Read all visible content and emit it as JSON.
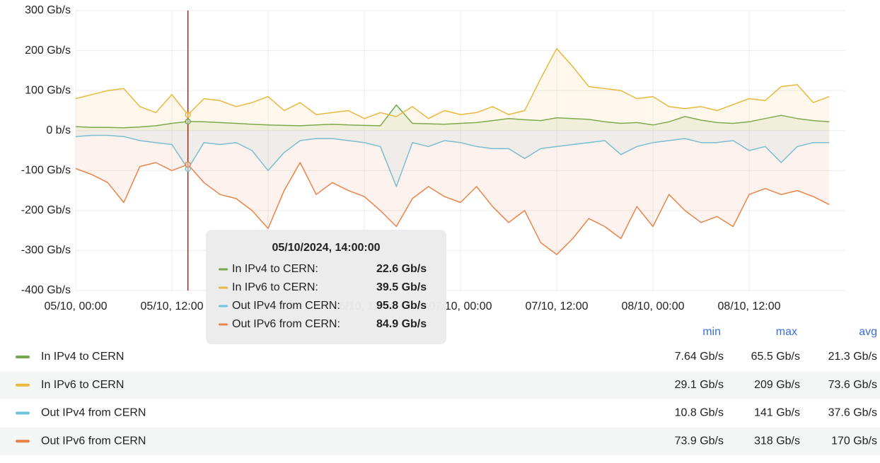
{
  "chart_data": {
    "type": "line",
    "x": [
      "05/10, 00:00",
      "05/10, 02:00",
      "05/10, 04:00",
      "05/10, 06:00",
      "05/10, 08:00",
      "05/10, 10:00",
      "05/10, 12:00",
      "05/10, 14:00",
      "05/10, 16:00",
      "05/10, 18:00",
      "05/10, 20:00",
      "05/10, 22:00",
      "06/10, 00:00",
      "06/10, 02:00",
      "06/10, 04:00",
      "06/10, 06:00",
      "06/10, 08:00",
      "06/10, 10:00",
      "06/10, 12:00",
      "06/10, 14:00",
      "06/10, 16:00",
      "06/10, 18:00",
      "06/10, 20:00",
      "06/10, 22:00",
      "07/10, 00:00",
      "07/10, 02:00",
      "07/10, 04:00",
      "07/10, 06:00",
      "07/10, 08:00",
      "07/10, 10:00",
      "07/10, 12:00",
      "07/10, 14:00",
      "07/10, 16:00",
      "07/10, 18:00",
      "07/10, 20:00",
      "07/10, 22:00",
      "08/10, 00:00",
      "08/10, 02:00",
      "08/10, 04:00",
      "08/10, 06:00",
      "08/10, 08:00",
      "08/10, 10:00",
      "08/10, 12:00",
      "08/10, 14:00",
      "08/10, 16:00",
      "08/10, 18:00",
      "08/10, 20:00",
      "08/10, 22:00"
    ],
    "xlim": [
      "05/10, 00:00",
      "09/10, 00:00"
    ],
    "xticks": [
      "05/10, 00:00",
      "05/10, 12:00",
      "06/10, 00:00",
      "06/10, 12:00",
      "07/10, 00:00",
      "07/10, 12:00",
      "08/10, 00:00",
      "08/10, 12:00"
    ],
    "ylim": [
      -400,
      300
    ],
    "yticks": [
      {
        "value": 300,
        "label": "300 Gb/s"
      },
      {
        "value": 200,
        "label": "200 Gb/s"
      },
      {
        "value": 100,
        "label": "100 Gb/s"
      },
      {
        "value": 0,
        "label": "0 b/s"
      },
      {
        "value": -100,
        "label": "-100 Gb/s"
      },
      {
        "value": -200,
        "label": "-200 Gb/s"
      },
      {
        "value": -300,
        "label": "-300 Gb/s"
      },
      {
        "value": -400,
        "label": "-400 Gb/s"
      }
    ],
    "grid": true,
    "series": [
      {
        "name": "In IPv4 to CERN",
        "color": "#73a850",
        "values": [
          10,
          8,
          8,
          7,
          9,
          12,
          18,
          22.6,
          22,
          20,
          18,
          16,
          14,
          13,
          12,
          14,
          16,
          14,
          13,
          12,
          64,
          18,
          17,
          16,
          18,
          20,
          25,
          30,
          27,
          25,
          32,
          30,
          28,
          22,
          18,
          20,
          14,
          22,
          35,
          26,
          20,
          18,
          22,
          30,
          38,
          30,
          25,
          22
        ]
      },
      {
        "name": "In IPv6 to CERN",
        "color": "#e8b83f",
        "values": [
          80,
          90,
          100,
          105,
          60,
          45,
          90,
          39.5,
          80,
          75,
          60,
          70,
          85,
          50,
          70,
          40,
          45,
          50,
          30,
          45,
          35,
          60,
          30,
          50,
          40,
          45,
          60,
          40,
          50,
          130,
          205,
          160,
          110,
          105,
          100,
          80,
          85,
          60,
          55,
          60,
          50,
          65,
          80,
          75,
          110,
          115,
          70,
          85
        ]
      },
      {
        "name": "Out IPv4 from CERN",
        "color": "#6ec6dc",
        "values": [
          -15,
          -12,
          -12,
          -15,
          -25,
          -30,
          -35,
          -95.8,
          -30,
          -35,
          -30,
          -50,
          -100,
          -55,
          -25,
          -20,
          -20,
          -25,
          -30,
          -40,
          -140,
          -30,
          -40,
          -25,
          -30,
          -40,
          -45,
          -45,
          -70,
          -45,
          -40,
          -35,
          -30,
          -25,
          -60,
          -40,
          -30,
          -25,
          -20,
          -30,
          -30,
          -25,
          -50,
          -40,
          -80,
          -40,
          -30,
          -30
        ]
      },
      {
        "name": "Out IPv6 from CERN",
        "color": "#e8844a",
        "values": [
          -95,
          -110,
          -130,
          -180,
          -90,
          -80,
          -100,
          -84.9,
          -130,
          -160,
          -170,
          -200,
          -245,
          -150,
          -80,
          -160,
          -130,
          -150,
          -165,
          -200,
          -240,
          -170,
          -140,
          -165,
          -180,
          -140,
          -190,
          -230,
          -200,
          -280,
          -310,
          -270,
          -220,
          -240,
          -270,
          -190,
          -240,
          -160,
          -200,
          -230,
          -215,
          -240,
          -160,
          -145,
          -160,
          -150,
          -165,
          -185
        ]
      }
    ],
    "legend": {
      "columns": [
        "min",
        "max",
        "avg"
      ],
      "rows": [
        [
          "7.64 Gb/s",
          "65.5 Gb/s",
          "21.3 Gb/s"
        ],
        [
          "29.1 Gb/s",
          "209 Gb/s",
          "73.6 Gb/s"
        ],
        [
          "10.8 Gb/s",
          "141 Gb/s",
          "37.6 Gb/s"
        ],
        [
          "73.9 Gb/s",
          "318 Gb/s",
          "170 Gb/s"
        ]
      ]
    },
    "tooltip": {
      "title": "05/10/2024, 14:00:00",
      "items": [
        {
          "name": "In IPv4 to CERN:",
          "value": "22.6 Gb/s"
        },
        {
          "name": "In IPv6 to CERN:",
          "value": "39.5 Gb/s"
        },
        {
          "name": "Out IPv4 from CERN:",
          "value": "95.8 Gb/s"
        },
        {
          "name": "Out IPv6 from CERN:",
          "value": "84.9 Gb/s"
        }
      ]
    }
  }
}
